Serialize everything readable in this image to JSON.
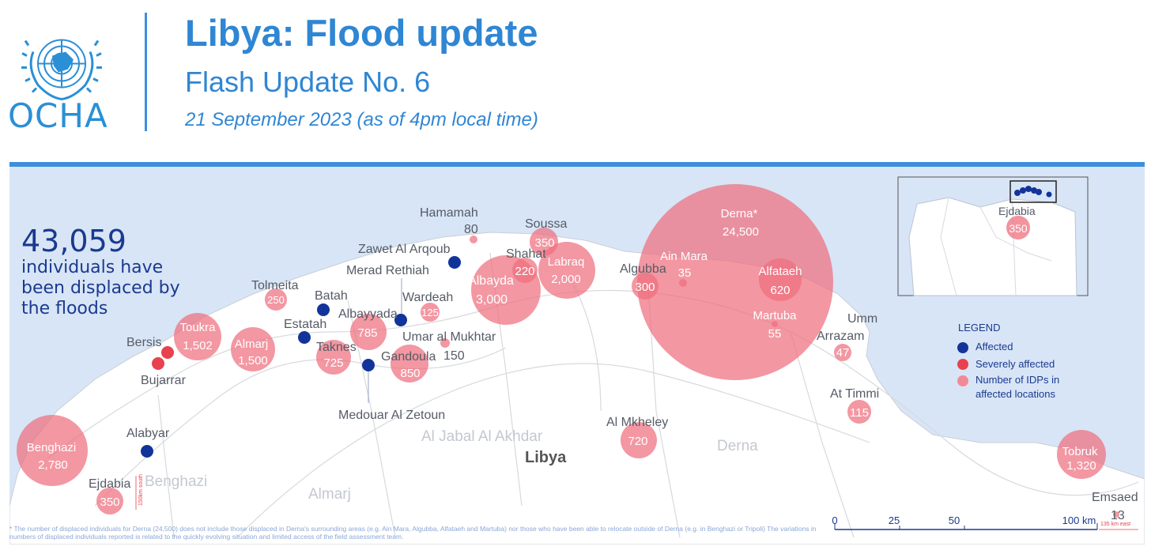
{
  "header": {
    "org": "OCHA",
    "title": "Libya: Flood update",
    "subtitle": "Flash Update No. 6",
    "date": "21 September 2023 (as of 4pm local time)"
  },
  "stat": {
    "value": "43,059",
    "text": "individuals have been displaced by the floods"
  },
  "legend": {
    "title": "LEGEND",
    "items": [
      {
        "label": "Affected",
        "color": "#12349a"
      },
      {
        "label": "Severely affected",
        "color": "#e8414f"
      },
      {
        "label": "Number of IDPs in affected locations",
        "color": "#f28a96"
      }
    ]
  },
  "inset": {
    "label": "Ejdabia",
    "value": "350"
  },
  "idp_locations": [
    {
      "name": "Derna*",
      "value": "24,500"
    },
    {
      "name": "Alfataeh",
      "value": "620"
    },
    {
      "name": "Martuba",
      "value": "55"
    },
    {
      "name": "Ain Mara",
      "value": "35"
    },
    {
      "name": "Algubba",
      "value": "300"
    },
    {
      "name": "Albayda",
      "value": "3,000"
    },
    {
      "name": "Labraq",
      "value": "2,000"
    },
    {
      "name": "Shahat",
      "value": "220"
    },
    {
      "name": "Soussa",
      "value": "350"
    },
    {
      "name": "Hamamah",
      "value": "80"
    },
    {
      "name": "Wardeah",
      "value": "125"
    },
    {
      "name": "Umar al Mukhtar",
      "value": "150"
    },
    {
      "name": "Gandoula",
      "value": "850"
    },
    {
      "name": "Albayyada",
      "value": "785"
    },
    {
      "name": "Taknes",
      "value": "725"
    },
    {
      "name": "Almarj",
      "value": "1,500"
    },
    {
      "name": "Toukra",
      "value": "1,502"
    },
    {
      "name": "Tolmeita",
      "value": "250"
    },
    {
      "name": "Benghazi",
      "value": "2,780"
    },
    {
      "name": "Ejdabia",
      "value": "350"
    },
    {
      "name": "Al Mkheley",
      "value": "720"
    },
    {
      "name": "Umm Arrazam",
      "value": "47"
    },
    {
      "name": "At Timmi",
      "value": "115"
    },
    {
      "name": "Tobruk",
      "value": "1,320"
    },
    {
      "name": "Emsaed",
      "value": "13"
    }
  ],
  "affected_locations": [
    {
      "name": "Zawet Al Arqoub"
    },
    {
      "name": "Merad Rethiah"
    },
    {
      "name": "Batah"
    },
    {
      "name": "Estatah"
    },
    {
      "name": "Medouar Al Zetoun"
    },
    {
      "name": "Alabyar"
    }
  ],
  "severely_affected_locations": [
    {
      "name": "Bersis"
    },
    {
      "name": "Bujarrar"
    }
  ],
  "map_labels": {
    "country": "Libya",
    "regions": [
      "Al Jabal Al Akhdar",
      "Derna",
      "Benghazi",
      "Almarj"
    ]
  },
  "scale": {
    "ticks": [
      "0",
      "25",
      "50",
      "100 km"
    ]
  },
  "offmap_notes": {
    "benghazi_south": "150km south",
    "tobruk_east": "135 km east"
  },
  "footnote": "* The number of displaced individuals for Derna (24,500) does not include those displaced in Derna's surrounding areas (e.g. Ain Mara, Algubba, Alfataeh and Martuba) nor those who have been able to relocate outside of Derna (e.g. in Benghazi or Tripoli) The variations in numbers of displaced individuals reported is related to the quickly evolving situation and limited access of the field assessment team."
}
